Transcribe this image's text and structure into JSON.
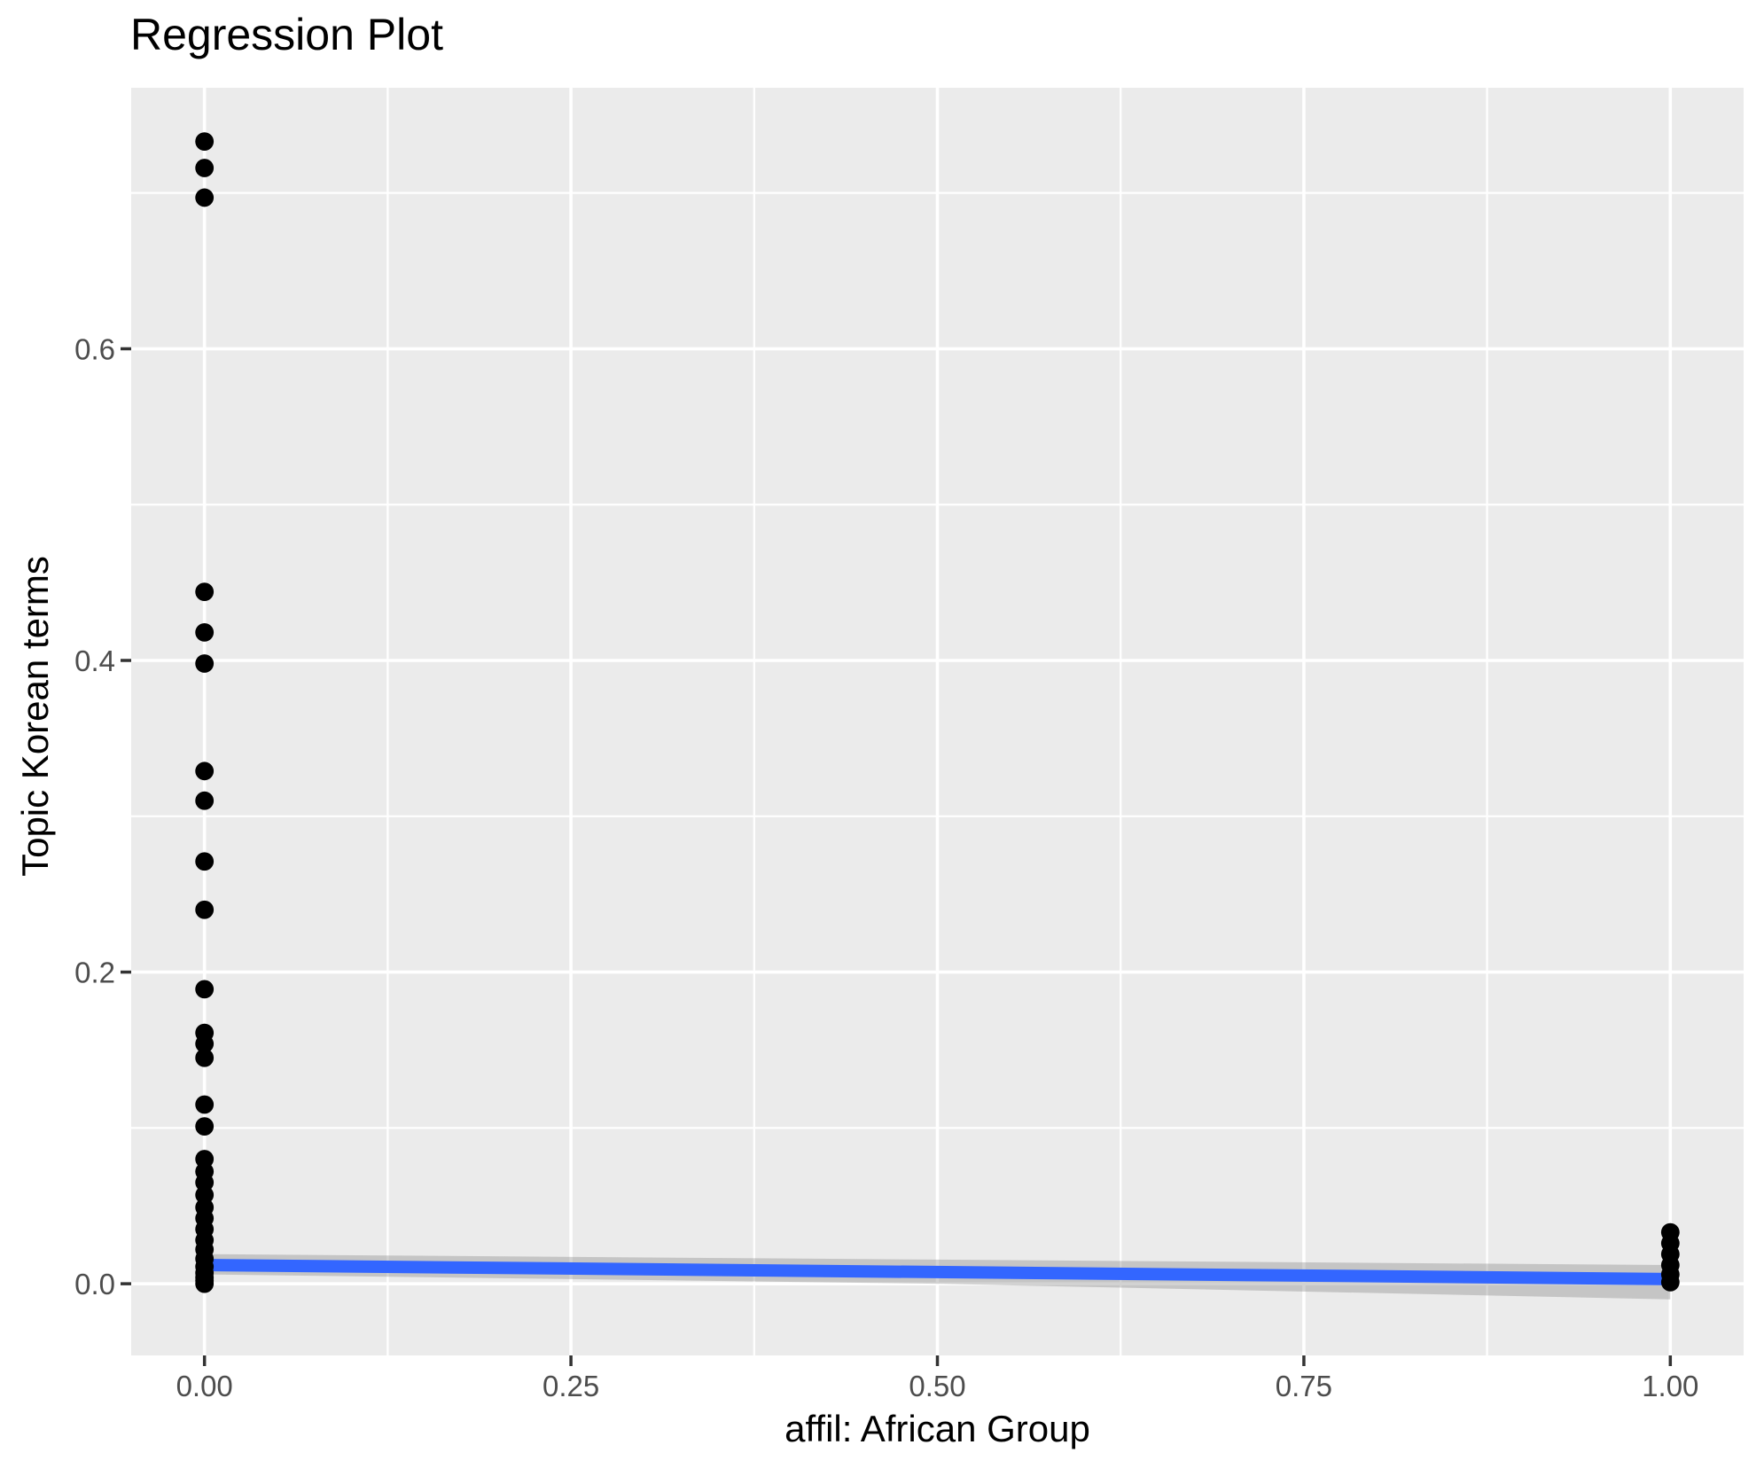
{
  "title": "Regression Plot",
  "colors": {
    "panel_background": "#EBEBEB",
    "gridline": "#FFFFFF",
    "point": "#000000",
    "regression_line": "#3366FF",
    "confidence_band": "rgba(125,125,125,0.35)",
    "tick_label": "#4D4D4D",
    "tick_mark": "#333333",
    "text": "#000000"
  },
  "axes": {
    "x": {
      "label": "affil: African Group",
      "ticks": [
        {
          "value": 0.0,
          "label": "0.00"
        },
        {
          "value": 0.25,
          "label": "0.25"
        },
        {
          "value": 0.5,
          "label": "0.50"
        },
        {
          "value": 0.75,
          "label": "0.75"
        },
        {
          "value": 1.0,
          "label": "1.00"
        }
      ],
      "minor": [
        0.125,
        0.375,
        0.625,
        0.875
      ]
    },
    "y": {
      "label": "Topic Korean terms",
      "ticks": [
        {
          "value": 0.0,
          "label": "0.0"
        },
        {
          "value": 0.2,
          "label": "0.2"
        },
        {
          "value": 0.4,
          "label": "0.4"
        },
        {
          "value": 0.6,
          "label": "0.6"
        }
      ],
      "minor": [
        0.1,
        0.3,
        0.5,
        0.7
      ]
    }
  },
  "chart_data": {
    "type": "scatter",
    "title": "Regression Plot",
    "xlabel": "affil: African Group",
    "ylabel": "Topic Korean terms",
    "xlim": [
      -0.05,
      1.05
    ],
    "ylim": [
      -0.046,
      0.7675
    ],
    "grid": "on",
    "legend": "none",
    "point_color": "#000000",
    "series": [
      {
        "name": "affil = 0",
        "x": 0,
        "y": [
          0.733,
          0.716,
          0.697,
          0.444,
          0.418,
          0.398,
          0.329,
          0.31,
          0.271,
          0.24,
          0.189,
          0.161,
          0.154,
          0.145,
          0.115,
          0.101,
          0.08,
          0.072,
          0.065,
          0.057,
          0.049,
          0.042,
          0.035,
          0.028,
          0.022,
          0.016,
          0.011,
          0.007,
          0.004,
          0.002,
          0.0
        ]
      },
      {
        "name": "affil = 1",
        "x": 1,
        "y": [
          0.033,
          0.026,
          0.019,
          0.012,
          0.006,
          0.001
        ]
      }
    ],
    "regression_line": {
      "x0": 0,
      "y0": 0.012,
      "x1": 1,
      "y1": 0.003,
      "color": "#3366FF"
    },
    "confidence_band": {
      "x": [
        0.0,
        0.5,
        1.0
      ],
      "upper": [
        0.019,
        0.0155,
        0.012
      ],
      "lower": [
        0.006,
        0.0,
        -0.01
      ]
    }
  }
}
